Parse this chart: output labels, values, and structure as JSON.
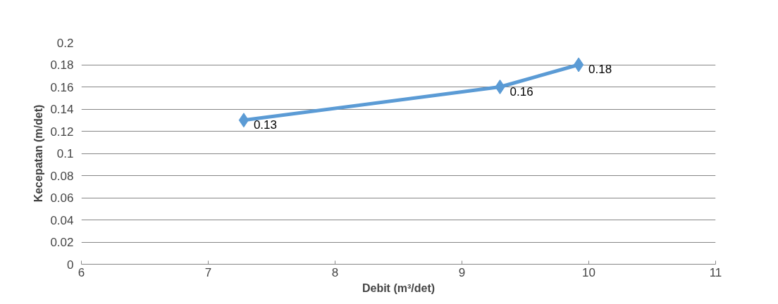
{
  "chart_data": {
    "type": "line",
    "xlabel": "Debit (m³/det)",
    "ylabel": "Kecepatan (m/det)",
    "x": [
      7.28,
      9.3,
      9.92
    ],
    "series": [
      {
        "color": "#5b9bd5",
        "values": [
          0.13,
          0.16,
          0.18
        ]
      }
    ],
    "xlim": [
      6,
      11
    ],
    "xticks": [
      6,
      7,
      8,
      9,
      10,
      11
    ],
    "ylim": [
      0,
      0.2
    ],
    "yticks": [
      0,
      0.02,
      0.04,
      0.06,
      0.08,
      0.1,
      0.12,
      0.14,
      0.16,
      0.18,
      0.2
    ],
    "grid": "y",
    "marker": "diamond",
    "line_style": "solid",
    "data_labels": true
  }
}
